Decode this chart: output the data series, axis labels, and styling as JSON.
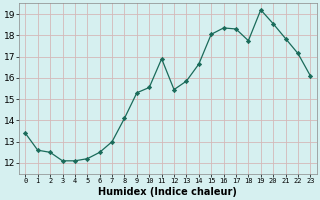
{
  "x": [
    0,
    1,
    2,
    3,
    4,
    5,
    6,
    7,
    8,
    9,
    10,
    11,
    12,
    13,
    14,
    15,
    16,
    17,
    18,
    19,
    20,
    21,
    22,
    23
  ],
  "y": [
    13.4,
    12.6,
    12.5,
    12.1,
    12.1,
    12.2,
    12.5,
    13.0,
    14.1,
    15.3,
    15.55,
    16.9,
    15.45,
    15.85,
    16.65,
    18.05,
    18.35,
    18.3,
    17.75,
    19.2,
    18.55,
    17.85,
    17.15,
    16.1
  ],
  "xlabel": "Humidex (Indice chaleur)",
  "xlim": [
    -0.5,
    23.5
  ],
  "ylim": [
    11.5,
    19.5
  ],
  "yticks": [
    12,
    13,
    14,
    15,
    16,
    17,
    18,
    19
  ],
  "xticks": [
    0,
    1,
    2,
    3,
    4,
    5,
    6,
    7,
    8,
    9,
    10,
    11,
    12,
    13,
    14,
    15,
    16,
    17,
    18,
    19,
    20,
    21,
    22,
    23
  ],
  "line_color": "#1a6b5a",
  "marker": "D",
  "marker_size": 2.2,
  "bg_color": "#d6f0f0",
  "grid_color": "#b8d8d8",
  "spine_color": "#888888"
}
